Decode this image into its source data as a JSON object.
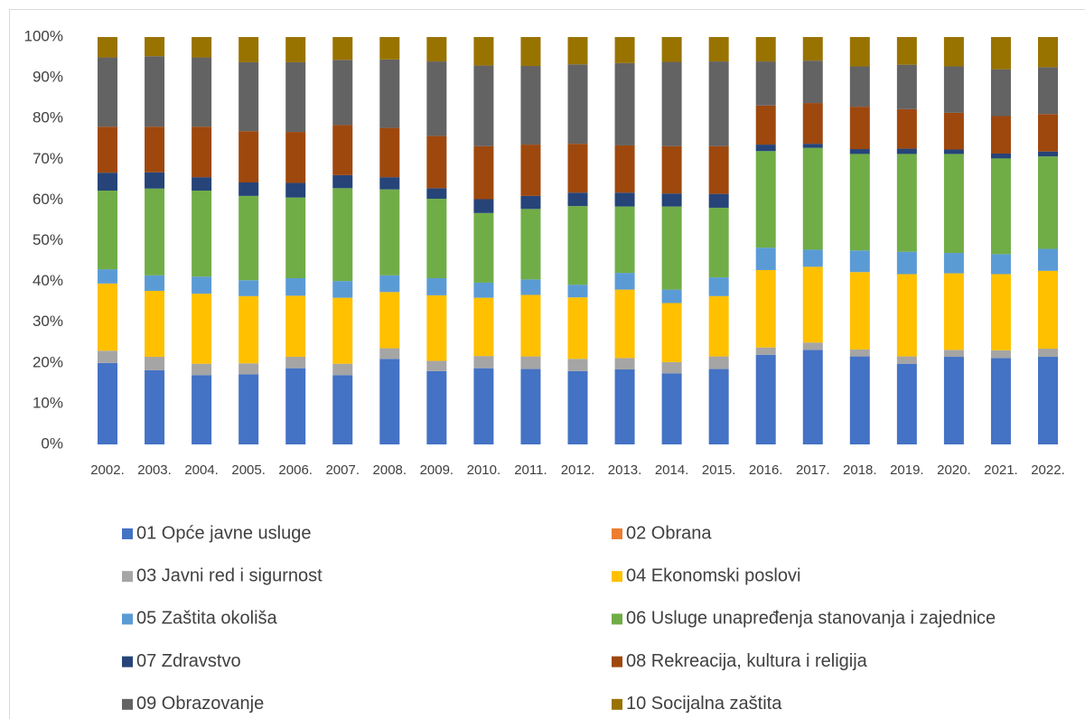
{
  "chart_data": {
    "type": "stacked_bar",
    "categories": [
      "2002.",
      "2003.",
      "2004.",
      "2005.",
      "2006.",
      "2007.",
      "2008.",
      "2009.",
      "2010.",
      "2011.",
      "2012.",
      "2013.",
      "2014.",
      "2015.",
      "2016.",
      "2017.",
      "2018.",
      "2019.",
      "2020.",
      "2021.",
      "2022."
    ],
    "ylim": [
      0,
      100
    ],
    "yticks": [
      {
        "value": 0,
        "label": "0%"
      },
      {
        "value": 10,
        "label": "10%"
      },
      {
        "value": 20,
        "label": "20%"
      },
      {
        "value": 30,
        "label": "30%"
      },
      {
        "value": 40,
        "label": "40%"
      },
      {
        "value": 50,
        "label": "50%"
      },
      {
        "value": 60,
        "label": "60%"
      },
      {
        "value": 70,
        "label": "70%"
      },
      {
        "value": 80,
        "label": "80%"
      },
      {
        "value": 90,
        "label": "90%"
      },
      {
        "value": 100,
        "label": "100%"
      }
    ],
    "grid": false,
    "legend": "bottom",
    "series": [
      {
        "name": "01 Opće javne usluge",
        "color": "#4472c4",
        "values": [
          20,
          18.2,
          17,
          17.2,
          18.7,
          17,
          21,
          18,
          18.7,
          18.5,
          18,
          18.4,
          17.4,
          18.5,
          22,
          23.2,
          21.6,
          19.8,
          21.5,
          21.2,
          21.5
        ]
      },
      {
        "name": "02 Obrana",
        "color": "#ed7d31",
        "values": [
          0,
          0,
          0,
          0,
          0,
          0,
          0,
          0,
          0,
          0,
          0,
          0,
          0,
          0,
          0,
          0,
          0,
          0,
          0,
          0,
          0
        ]
      },
      {
        "name": "03 Javni red i sigurnost",
        "color": "#a5a5a5",
        "values": [
          3,
          3.3,
          2.8,
          2.7,
          2.8,
          2.8,
          2.6,
          2.5,
          3,
          3.1,
          3,
          2.8,
          2.8,
          3.1,
          1.8,
          1.8,
          1.7,
          1.8,
          1.7,
          1.9,
          2
        ]
      },
      {
        "name": "04 Ekonomski poslovi",
        "color": "#ffc000",
        "values": [
          16.5,
          16.2,
          17.2,
          16.5,
          15,
          16.2,
          13.8,
          16.1,
          14.3,
          15.1,
          15.1,
          16.8,
          14.5,
          14.8,
          19,
          18.6,
          19,
          20.2,
          18.8,
          18.7,
          19.1
        ]
      },
      {
        "name": "05 Zaštita okoliša",
        "color": "#5b9bd5",
        "values": [
          3.5,
          3.8,
          4.2,
          3.9,
          4.3,
          4.1,
          4.1,
          4.2,
          3.7,
          3.8,
          3.1,
          4.1,
          3.3,
          4.6,
          5.5,
          4.2,
          5.3,
          5.5,
          5,
          4.9,
          5.4
        ]
      },
      {
        "name": "06 Usluge unapređenja stanovanja i zajednice",
        "color": "#70ad47",
        "values": [
          19.3,
          21.3,
          21.1,
          20.7,
          19.8,
          22.8,
          21.1,
          19.5,
          17.1,
          17.3,
          19.3,
          16.3,
          20.4,
          17.1,
          23.7,
          25,
          23.7,
          24,
          24.3,
          23.5,
          22.7
        ]
      },
      {
        "name": "07 Zdravstvo",
        "color": "#264478",
        "values": [
          4.4,
          4,
          3.3,
          3.3,
          3.6,
          3.2,
          3,
          2.6,
          3.4,
          3.2,
          3.3,
          3.4,
          3.2,
          3.4,
          1.6,
          1,
          1.2,
          1.3,
          1.1,
          1.2,
          1.2
        ]
      },
      {
        "name": "08 Rekreacija, kultura i religija",
        "color": "#9e480e",
        "values": [
          11.3,
          11.2,
          12.4,
          12.6,
          12.5,
          12.3,
          12.1,
          12.8,
          13,
          12.6,
          12,
          11.6,
          11.6,
          11.7,
          9.6,
          10,
          10.4,
          9.7,
          9,
          9.2,
          9.2
        ]
      },
      {
        "name": "09 Obrazovanje",
        "color": "#636363",
        "values": [
          17,
          17.3,
          17,
          16.9,
          17.1,
          16,
          16.8,
          18.3,
          19.8,
          19.3,
          19.5,
          20.2,
          20.7,
          20.8,
          10.8,
          10.4,
          9.9,
          10.9,
          11.4,
          11.5,
          11.5
        ]
      },
      {
        "name": "10 Socijalna zaštita",
        "color": "#997300",
        "values": [
          5,
          4.7,
          5,
          6.2,
          6.2,
          5.6,
          5.5,
          6,
          7,
          7.1,
          6.7,
          6.4,
          6.1,
          6,
          6,
          5.8,
          7.2,
          6.8,
          7.2,
          7.9,
          7.4
        ]
      }
    ]
  }
}
